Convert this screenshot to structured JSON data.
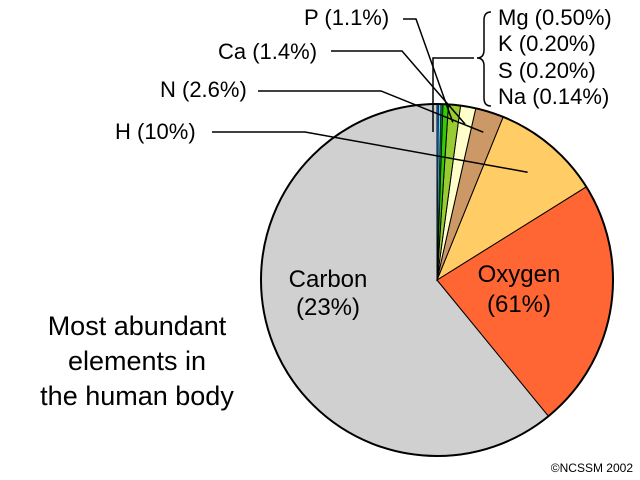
{
  "chart_data": {
    "type": "pie",
    "title": "Most abundant elements in the human body",
    "title_lines": [
      "Most abundant",
      "elements in",
      "the human body"
    ],
    "slices": [
      {
        "name": "Oxygen",
        "display": "Oxygen",
        "pct_label": "(61%)",
        "value": 61,
        "color": "#d0d0d0"
      },
      {
        "name": "Carbon",
        "display": "Carbon",
        "pct_label": "(23%)",
        "value": 23,
        "color": "#ff6633"
      },
      {
        "name": "H",
        "display": "H (10%)",
        "value": 10,
        "color": "#ffcc66"
      },
      {
        "name": "N",
        "display": "N (2.6%)",
        "value": 2.6,
        "color": "#cc9966"
      },
      {
        "name": "Ca",
        "display": "Ca (1.4%)",
        "value": 1.4,
        "color": "#ffffcc"
      },
      {
        "name": "P",
        "display": "P (1.1%)",
        "value": 1.1,
        "color": "#99cc33"
      },
      {
        "name": "Mg",
        "display": "Mg (0.50%)",
        "value": 0.5,
        "color": "#33cc00"
      },
      {
        "name": "K",
        "display": "K (0.20%)",
        "value": 0.2,
        "color": "#006633"
      },
      {
        "name": "S",
        "display": "S (0.20%)",
        "value": 0.2,
        "color": "#66ccff"
      },
      {
        "name": "Na",
        "display": "Na (0.14%)",
        "value": 0.14,
        "color": "#0066cc"
      }
    ],
    "start_angle_deg": 0,
    "direction": "counterclockwise"
  },
  "credit": "©NCSSM 2002"
}
